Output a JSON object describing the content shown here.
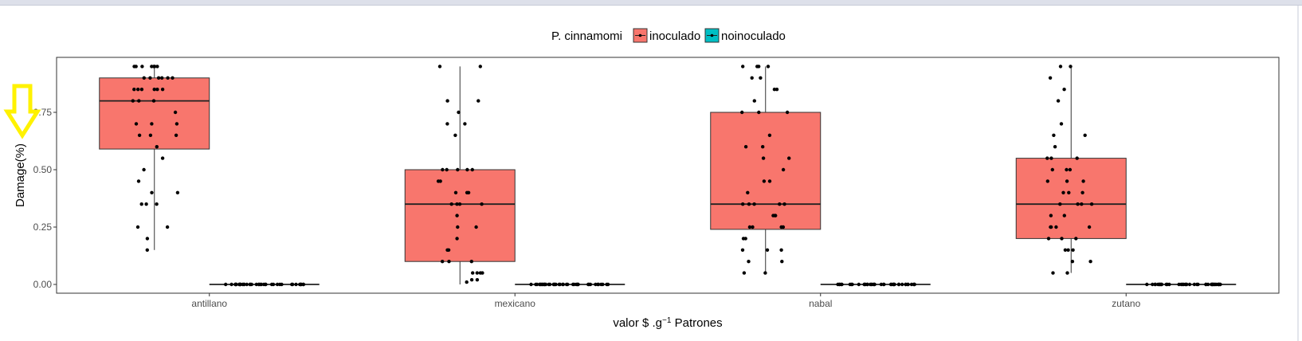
{
  "chart_data": {
    "type": "boxplot",
    "title": "",
    "xlabel": "valor $ .g⁻¹ Patrones",
    "xlabel_parts": {
      "prefix": "valor $  .g",
      "sup": "−1",
      "suffix": " Patrones"
    },
    "ylabel": "Damage(%)",
    "ylim": [
      -0.04,
      0.99
    ],
    "yticks": [
      0.0,
      0.25,
      0.5,
      0.75
    ],
    "ytick_labels": [
      "0.00",
      "0.25",
      "0.50",
      "0.75"
    ],
    "categories": [
      "antillano",
      "mexicano",
      "nabal",
      "zutano"
    ],
    "legend": {
      "title": "P. cinnamomi",
      "position": "top",
      "entries": [
        {
          "name": "inoculado",
          "color": "#F8766D"
        },
        {
          "name": "noinoculado",
          "color": "#00BFC4"
        }
      ]
    },
    "grid": false,
    "series": [
      {
        "name": "inoculado",
        "color": "#F8766D",
        "boxes": [
          {
            "category": "antillano",
            "min": 0.15,
            "q1": 0.59,
            "median": 0.8,
            "q3": 0.9,
            "max": 0.95
          },
          {
            "category": "mexicano",
            "min": 0.0,
            "q1": 0.1,
            "median": 0.35,
            "q3": 0.5,
            "max": 0.95
          },
          {
            "category": "nabal",
            "min": 0.05,
            "q1": 0.24,
            "median": 0.35,
            "q3": 0.75,
            "max": 0.95
          },
          {
            "category": "zutano",
            "min": 0.05,
            "q1": 0.2,
            "median": 0.35,
            "q3": 0.55,
            "max": 0.95
          }
        ],
        "points": {
          "antillano": [
            0.95,
            0.95,
            0.95,
            0.95,
            0.95,
            0.95,
            0.95,
            0.9,
            0.9,
            0.9,
            0.9,
            0.9,
            0.9,
            0.85,
            0.85,
            0.85,
            0.85,
            0.85,
            0.85,
            0.8,
            0.8,
            0.8,
            0.75,
            0.7,
            0.7,
            0.7,
            0.65,
            0.65,
            0.65,
            0.6,
            0.55,
            0.5,
            0.45,
            0.4,
            0.4,
            0.35,
            0.35,
            0.35,
            0.25,
            0.25,
            0.2,
            0.15
          ],
          "mexicano": [
            0.95,
            0.95,
            0.8,
            0.8,
            0.75,
            0.7,
            0.7,
            0.65,
            0.5,
            0.5,
            0.5,
            0.5,
            0.5,
            0.45,
            0.45,
            0.4,
            0.4,
            0.4,
            0.35,
            0.35,
            0.35,
            0.35,
            0.3,
            0.25,
            0.25,
            0.2,
            0.15,
            0.15,
            0.1,
            0.1,
            0.1,
            0.05,
            0.05,
            0.05,
            0.05,
            0.02,
            0.02,
            0.01
          ],
          "nabal": [
            0.95,
            0.95,
            0.95,
            0.95,
            0.9,
            0.9,
            0.85,
            0.85,
            0.8,
            0.75,
            0.75,
            0.75,
            0.65,
            0.6,
            0.6,
            0.55,
            0.55,
            0.5,
            0.45,
            0.45,
            0.4,
            0.35,
            0.35,
            0.35,
            0.35,
            0.35,
            0.3,
            0.3,
            0.3,
            0.25,
            0.25,
            0.25,
            0.25,
            0.2,
            0.2,
            0.15,
            0.15,
            0.15,
            0.1,
            0.1,
            0.05,
            0.05
          ],
          "zutano": [
            0.95,
            0.95,
            0.9,
            0.85,
            0.8,
            0.7,
            0.65,
            0.65,
            0.6,
            0.55,
            0.55,
            0.55,
            0.5,
            0.5,
            0.5,
            0.45,
            0.45,
            0.45,
            0.4,
            0.4,
            0.4,
            0.35,
            0.35,
            0.35,
            0.35,
            0.3,
            0.3,
            0.25,
            0.25,
            0.25,
            0.25,
            0.2,
            0.2,
            0.2,
            0.15,
            0.15,
            0.15,
            0.1,
            0.1,
            0.05,
            0.05
          ]
        }
      },
      {
        "name": "noinoculado",
        "color": "#00BFC4",
        "boxes": [
          {
            "category": "antillano",
            "min": 0,
            "q1": 0,
            "median": 0,
            "q3": 0,
            "max": 0
          },
          {
            "category": "mexicano",
            "min": 0,
            "q1": 0,
            "median": 0,
            "q3": 0,
            "max": 0
          },
          {
            "category": "nabal",
            "min": 0,
            "q1": 0,
            "median": 0,
            "q3": 0,
            "max": 0
          },
          {
            "category": "zutano",
            "min": 0,
            "q1": 0,
            "median": 0,
            "q3": 0,
            "max": 0
          }
        ],
        "points_count_per_category": 40
      }
    ],
    "annotation": {
      "type": "arrow",
      "color": "#FFF200",
      "direction": "down",
      "target": "y-axis-label"
    }
  }
}
